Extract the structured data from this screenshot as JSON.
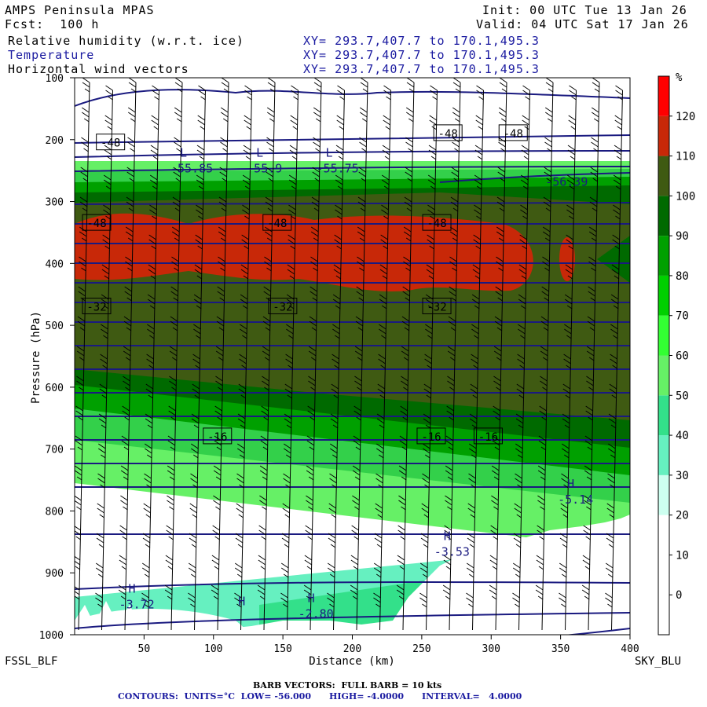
{
  "header": {
    "model": "AMPS Peninsula MPAS",
    "forecast": "Fcst:  100 h",
    "init": "Init: 00 UTC Tue 13 Jan 26",
    "valid": "Valid: 04 UTC Sat 17 Jan 26",
    "fields": [
      "Relative humidity (w.r.t. ice)",
      "Temperature",
      "Horizontal wind vectors"
    ],
    "xy_line": "XY= 293.7,407.7 to 170.1,495.3"
  },
  "footer": {
    "barb_note": "BARB VECTORS:  FULL BARB = 10 kts",
    "contours": "CONTOURS:  UNITS=°C  LOW= -56.000      HIGH= -4.0000      INTERVAL=   4.0000"
  },
  "chart_data": {
    "type": "heatmap",
    "xlabel": "Distance (km)",
    "ylabel": "Pressure (hPa)",
    "x_ticks": [
      50,
      100,
      150,
      200,
      250,
      300,
      350,
      400
    ],
    "y_ticks": [
      100,
      200,
      300,
      400,
      500,
      600,
      700,
      800,
      900,
      1000
    ],
    "xlim": [
      0,
      400
    ],
    "ylim": [
      1000,
      100
    ],
    "left_endpoint": "FSSL_BLF",
    "right_endpoint": "SKY_BLU",
    "colorbar": {
      "unit": "%",
      "levels": [
        0,
        10,
        20,
        30,
        40,
        50,
        60,
        70,
        80,
        90,
        100,
        110,
        120
      ],
      "colors": [
        "#ffffff",
        "#ffffff",
        "#ffffff",
        "#cdfff0",
        "#66f0c0",
        "#33e08a",
        "#66f066",
        "#33ff33",
        "#00d000",
        "#00a000",
        "#006a00",
        "#3f5a12",
        "#c82808",
        "#ff0000"
      ]
    },
    "temperature_labels": [
      {
        "text": "-48",
        "x": 10,
        "p": 205
      },
      {
        "text": "-48",
        "x": 253,
        "p": 190
      },
      {
        "text": "-48",
        "x": 300,
        "p": 190
      },
      {
        "text": "-48",
        "x": 0,
        "p": 335
      },
      {
        "text": "-48",
        "x": 130,
        "p": 335
      },
      {
        "text": "-48",
        "x": 245,
        "p": 335
      },
      {
        "text": "-32",
        "x": 0,
        "p": 470
      },
      {
        "text": "-32",
        "x": 134,
        "p": 470
      },
      {
        "text": "-32",
        "x": 245,
        "p": 470
      },
      {
        "text": "-16",
        "x": 87,
        "p": 680
      },
      {
        "text": "-16",
        "x": 241,
        "p": 680
      },
      {
        "text": "-16",
        "x": 282,
        "p": 680
      }
    ],
    "extrema": [
      {
        "kind": "L",
        "x": 69,
        "p": 240,
        "value": "-55.85"
      },
      {
        "kind": "L",
        "x": 124,
        "p": 240,
        "value": "-55.9"
      },
      {
        "kind": "L",
        "x": 174,
        "p": 240,
        "value": "-55.75"
      },
      {
        "kind": "",
        "x": 339,
        "p": 262,
        "value": "-56.39"
      },
      {
        "kind": "H",
        "x": 348,
        "p": 775,
        "value": "-5.14"
      },
      {
        "kind": "H",
        "x": 259,
        "p": 860,
        "value": "-3.53"
      },
      {
        "kind": "H",
        "x": 32,
        "p": 945,
        "value": "-3.72"
      },
      {
        "kind": "H",
        "x": 111,
        "p": 965,
        "value": ""
      },
      {
        "kind": "H",
        "x": 161,
        "p": 960,
        "value": "-2.80"
      }
    ]
  }
}
